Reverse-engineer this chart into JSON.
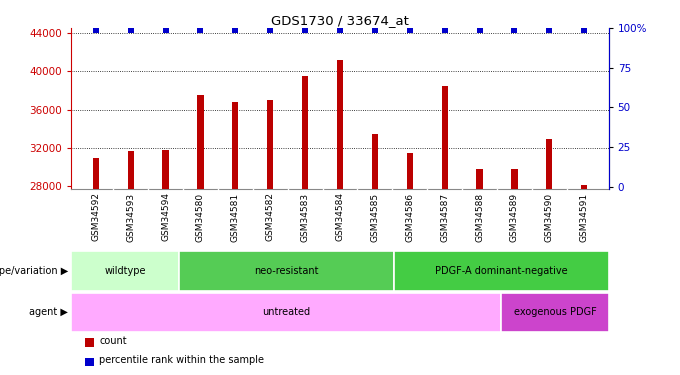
{
  "title": "GDS1730 / 33674_at",
  "samples": [
    "GSM34592",
    "GSM34593",
    "GSM34594",
    "GSM34580",
    "GSM34581",
    "GSM34582",
    "GSM34583",
    "GSM34584",
    "GSM34585",
    "GSM34586",
    "GSM34587",
    "GSM34588",
    "GSM34589",
    "GSM34590",
    "GSM34591"
  ],
  "counts": [
    31000,
    31700,
    31800,
    37500,
    36800,
    37000,
    39500,
    41200,
    33500,
    31500,
    38500,
    29800,
    29800,
    33000,
    28200
  ],
  "percentile_values": [
    99,
    99,
    99,
    99,
    99,
    99,
    99,
    99,
    99,
    99,
    99,
    99,
    99,
    99,
    99
  ],
  "bar_color": "#bb0000",
  "dot_color": "#0000cc",
  "ylim_left": [
    27700,
    44500
  ],
  "ylim_right": [
    -1.7,
    100
  ],
  "yticks_left": [
    28000,
    32000,
    36000,
    40000,
    44000
  ],
  "yticks_right": [
    0,
    25,
    50,
    75,
    100
  ],
  "grid_values": [
    32000,
    36000,
    40000,
    44000
  ],
  "bar_bottom": 27700,
  "groups_genotype": [
    {
      "label": "wildtype",
      "start": 0,
      "end": 3,
      "color": "#ccffcc"
    },
    {
      "label": "neo-resistant",
      "start": 3,
      "end": 9,
      "color": "#55cc55"
    },
    {
      "label": "PDGF-A dominant-negative",
      "start": 9,
      "end": 15,
      "color": "#44cc44"
    }
  ],
  "groups_agent": [
    {
      "label": "untreated",
      "start": 0,
      "end": 12,
      "color": "#ffaaff"
    },
    {
      "label": "exogenous PDGF",
      "start": 12,
      "end": 15,
      "color": "#cc44cc"
    }
  ],
  "legend_items": [
    {
      "label": "count",
      "color": "#bb0000"
    },
    {
      "label": "percentile rank within the sample",
      "color": "#0000cc"
    }
  ],
  "background_color": "#ffffff",
  "tick_color_left": "#cc0000",
  "tick_color_right": "#0000cc",
  "xtick_bg": "#cccccc"
}
